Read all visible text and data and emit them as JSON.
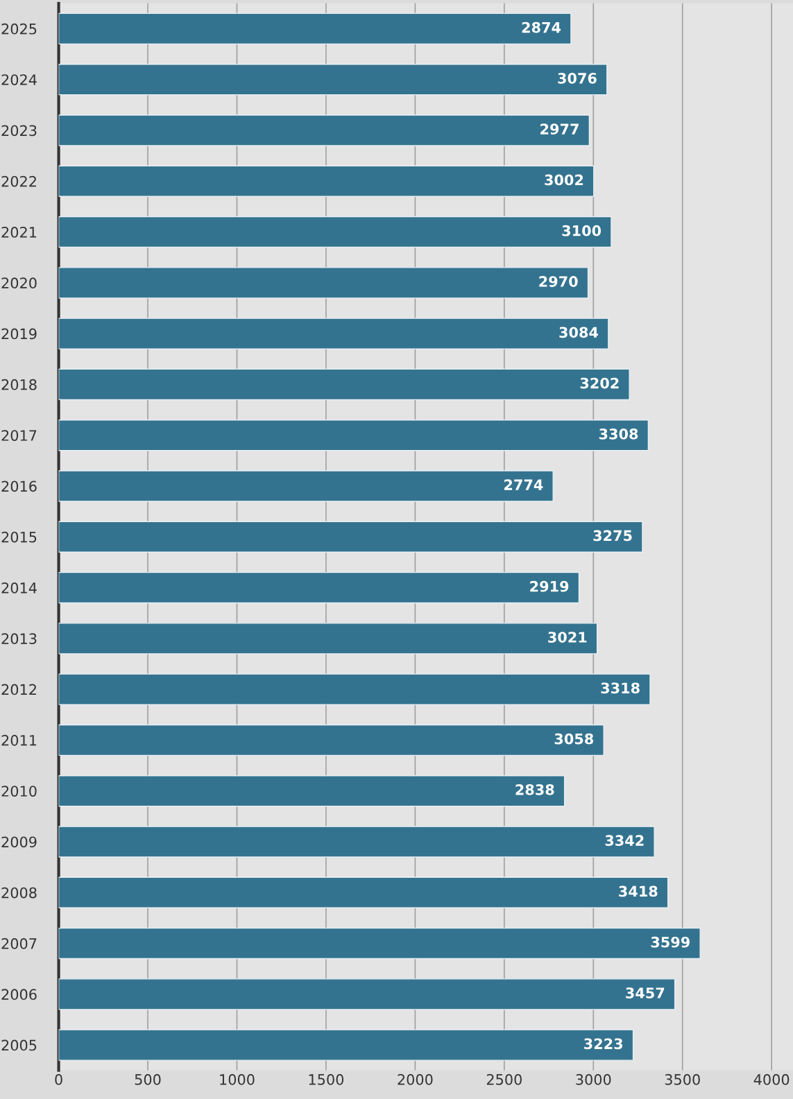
{
  "chart_data": {
    "type": "bar",
    "orientation": "horizontal",
    "categories": [
      "2025",
      "2024",
      "2023",
      "2022",
      "2021",
      "2020",
      "2019",
      "2018",
      "2017",
      "2016",
      "2015",
      "2014",
      "2013",
      "2012",
      "2011",
      "2010",
      "2009",
      "2008",
      "2007",
      "2006",
      "2005"
    ],
    "values": [
      2874,
      3076,
      2977,
      3002,
      3100,
      2970,
      3084,
      3202,
      3308,
      2774,
      3275,
      2919,
      3021,
      3318,
      3058,
      2838,
      3342,
      3418,
      3599,
      3457,
      3223
    ],
    "color": "#34738f",
    "xlim": [
      0,
      4120
    ],
    "xticks": [
      0,
      500,
      1000,
      1500,
      2000,
      2500,
      3000,
      3500,
      4000
    ],
    "grid": "x",
    "data_labels": true,
    "legend": false
  }
}
